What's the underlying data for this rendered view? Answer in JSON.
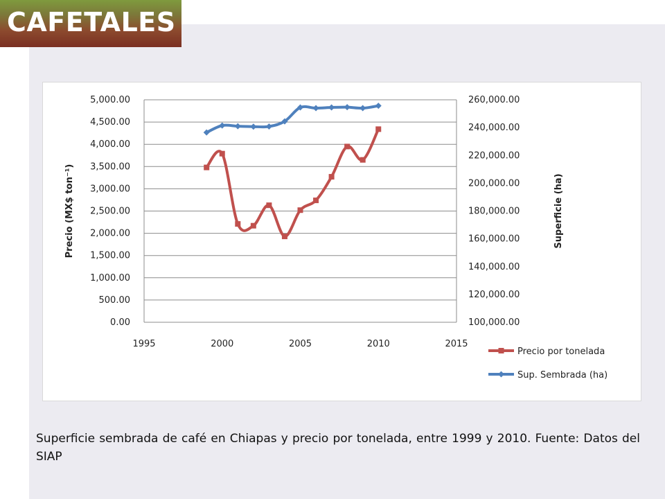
{
  "slide": {
    "title": "CAFETALES",
    "caption": "Superficie sembrada de café en Chiapas y precio por tonelada, entre 1999 y 2010. Fuente: Datos del SIAP"
  },
  "chart_data": {
    "type": "line",
    "x_ticks": [
      "1995",
      "2000",
      "2005",
      "2010",
      "2015"
    ],
    "xlim": [
      1995,
      2015
    ],
    "y_left": {
      "label": "Precio (MX$ ton⁻¹)",
      "lim": [
        0,
        5000
      ],
      "ticks": [
        "0.00",
        "500.00",
        "1,000.00",
        "1,500.00",
        "2,000.00",
        "2,500.00",
        "3,000.00",
        "3,500.00",
        "4,000.00",
        "4,500.00",
        "5,000.00"
      ]
    },
    "y_right": {
      "label": "Superficie (ha)",
      "lim": [
        100000,
        260000
      ],
      "ticks": [
        "100,000.00",
        "120,000.00",
        "140,000.00",
        "160,000.00",
        "180,000.00",
        "200,000.00",
        "220,000.00",
        "240,000.00",
        "260,000.00"
      ]
    },
    "grid": true,
    "legend_position": "bottom-right",
    "series": [
      {
        "name": "Precio por tonelada",
        "axis": "left",
        "color": "#c0504d",
        "marker": "square",
        "x": [
          1999,
          2000,
          2001,
          2002,
          2003,
          2004,
          2005,
          2006,
          2007,
          2008,
          2009,
          2010
        ],
        "y": [
          3480,
          3790,
          2210,
          2170,
          2630,
          1930,
          2520,
          2740,
          3270,
          3950,
          3650,
          4340
        ]
      },
      {
        "name": "Sup. Sembrada (ha)",
        "axis": "right",
        "color": "#4f81bd",
        "marker": "diamond",
        "x": [
          1999,
          2000,
          2001,
          2002,
          2003,
          2004,
          2005,
          2006,
          2007,
          2008,
          2009,
          2010
        ],
        "y": [
          236500,
          241500,
          241000,
          240700,
          240800,
          244500,
          254500,
          254000,
          254500,
          254700,
          254000,
          255700
        ]
      }
    ]
  }
}
